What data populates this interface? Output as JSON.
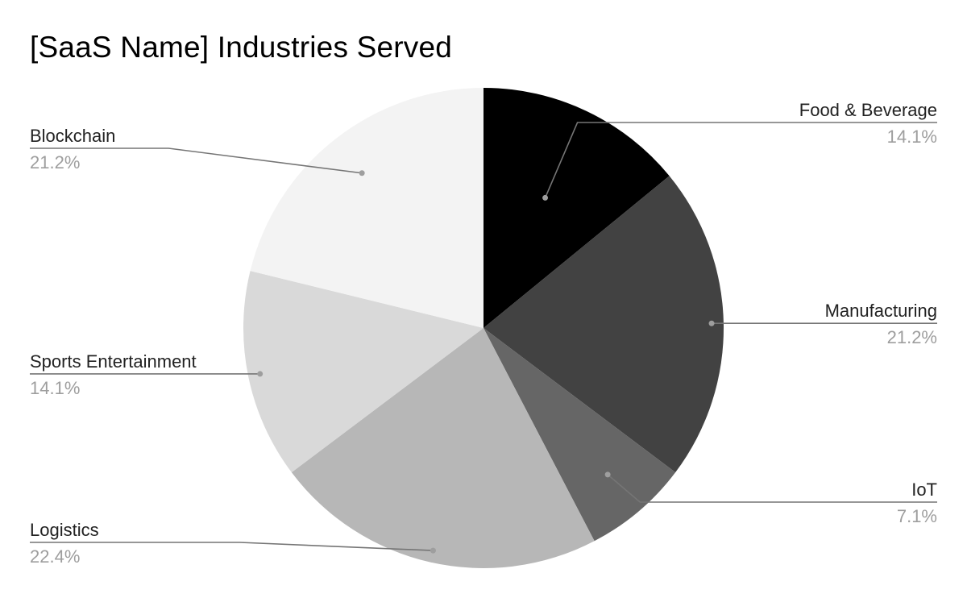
{
  "chart_data": {
    "type": "pie",
    "title": "[SaaS Name] Industries Served",
    "slices": [
      {
        "label": "Food & Beverage",
        "value": 14.1,
        "pct_label": "14.1%",
        "color": "#000000"
      },
      {
        "label": "Manufacturing",
        "value": 21.2,
        "pct_label": "21.2%",
        "color": "#424242"
      },
      {
        "label": "IoT",
        "value": 7.1,
        "pct_label": "7.1%",
        "color": "#666666"
      },
      {
        "label": "Logistics",
        "value": 22.4,
        "pct_label": "22.4%",
        "color": "#b7b7b7"
      },
      {
        "label": "Sports Entertainment",
        "value": 14.1,
        "pct_label": "14.1%",
        "color": "#d9d9d9"
      },
      {
        "label": "Blockchain",
        "value": 21.2,
        "pct_label": "21.2%",
        "color": "#f3f3f3"
      }
    ],
    "start_angle": "12 o'clock",
    "direction": "clockwise",
    "legend": "none",
    "data_labels": "outside with leader lines"
  }
}
